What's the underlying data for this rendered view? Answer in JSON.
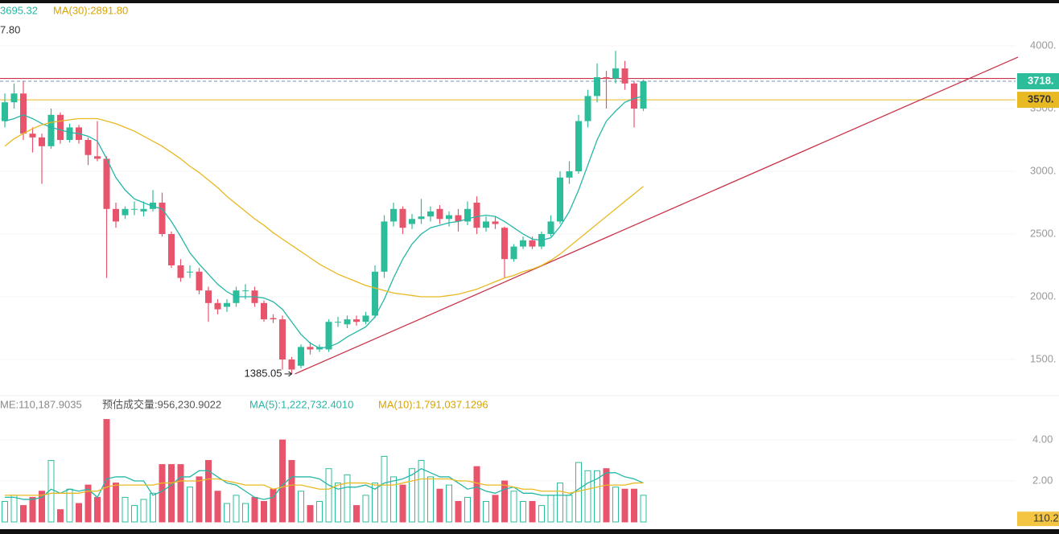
{
  "chart_data": {
    "type": "candlestick",
    "header": {
      "ma_short": "3695.32",
      "ma30": "MA(30):2891.80",
      "sub": "7.80"
    },
    "volume_header": {
      "volume": "ME:110,187.9035",
      "estimate": "预估成交量:956,230.9022",
      "ma5": "MA(5):1,222,732.4010",
      "ma10": "MA(10):1,791,037.1296"
    },
    "colors": {
      "up": "#2ebd9b",
      "down": "#e8546b",
      "ma_short": "#25b7a6",
      "ma_long": "#e8b923",
      "trend": "#c8344a"
    },
    "open": [
      3400,
      3550,
      3620,
      3300,
      3270,
      3200,
      3450,
      3250,
      3350,
      3250,
      3120,
      3100,
      2700,
      2650,
      2700,
      2680,
      2700,
      2750,
      2500,
      2250,
      2200,
      2200,
      2050,
      1950,
      1920,
      1950,
      2050,
      2050,
      1950,
      1830,
      1820,
      1500,
      1450,
      1600,
      1580,
      1580,
      1800,
      1780,
      1820,
      1800,
      1850,
      2200,
      2600,
      2700,
      2580,
      2620,
      2640,
      2700,
      2620,
      2650,
      2600,
      2750,
      2550,
      2600,
      2550,
      2300,
      2400,
      2450,
      2400,
      2500,
      2600,
      2950,
      3000,
      3400,
      3600,
      3750,
      3740,
      3820,
      3700,
      3500
    ],
    "high": [
      3620,
      3700,
      3720,
      3350,
      3300,
      3500,
      3470,
      3380,
      3370,
      3270,
      3400,
      3120,
      2750,
      2720,
      2760,
      2760,
      2850,
      2830,
      2520,
      2300,
      2250,
      2230,
      2080,
      1980,
      1980,
      2080,
      2100,
      2080,
      1970,
      1860,
      1850,
      1520,
      1620,
      1640,
      1620,
      1820,
      1840,
      1850,
      1850,
      1880,
      2250,
      2650,
      2750,
      2720,
      2660,
      2780,
      2720,
      2730,
      2680,
      2700,
      2760,
      2800,
      2640,
      2640,
      2560,
      2420,
      2480,
      2480,
      2520,
      2650,
      3000,
      3080,
      3450,
      3650,
      3860,
      3800,
      3960,
      3880,
      3720,
      3730
    ],
    "low": [
      3350,
      3500,
      3250,
      3150,
      2900,
      3180,
      3220,
      3230,
      3220,
      3050,
      3080,
      2150,
      2550,
      2620,
      2650,
      2640,
      2680,
      2480,
      2230,
      2120,
      2150,
      2020,
      1800,
      1860,
      1880,
      1920,
      1980,
      1920,
      1800,
      1790,
      1420,
      1385.05,
      1430,
      1540,
      1560,
      1560,
      1760,
      1750,
      1770,
      1780,
      1830,
      2150,
      2560,
      2500,
      2540,
      2580,
      2600,
      2580,
      2560,
      2520,
      2570,
      2500,
      2520,
      2540,
      2150,
      2280,
      2380,
      2380,
      2380,
      2480,
      2580,
      2900,
      2980,
      3350,
      3550,
      3500,
      3700,
      3650,
      3350,
      3480
    ],
    "close": [
      3550,
      3620,
      3300,
      3270,
      3200,
      3450,
      3250,
      3350,
      3250,
      3130,
      3100,
      2700,
      2600,
      2700,
      2700,
      2700,
      2750,
      2500,
      2250,
      2150,
      2200,
      2050,
      1950,
      1900,
      1950,
      2050,
      2050,
      1950,
      1820,
      1820,
      1500,
      1420,
      1600,
      1580,
      1600,
      1800,
      1800,
      1820,
      1800,
      1850,
      2200,
      2600,
      2700,
      2550,
      2620,
      2640,
      2680,
      2620,
      2650,
      2600,
      2700,
      2550,
      2600,
      2580,
      2300,
      2400,
      2450,
      2400,
      2500,
      2600,
      2950,
      3000,
      3400,
      3600,
      3750,
      3740,
      3820,
      3700,
      3500,
      3718
    ],
    "ma_short": [
      3400,
      3420,
      3450,
      3420,
      3380,
      3350,
      3330,
      3310,
      3300,
      3280,
      3240,
      3100,
      2950,
      2850,
      2780,
      2750,
      2720,
      2700,
      2600,
      2480,
      2350,
      2260,
      2180,
      2100,
      2040,
      2000,
      2000,
      2000,
      1990,
      1960,
      1900,
      1800,
      1700,
      1630,
      1590,
      1600,
      1630,
      1680,
      1720,
      1760,
      1840,
      1980,
      2150,
      2300,
      2420,
      2500,
      2550,
      2570,
      2590,
      2600,
      2620,
      2640,
      2650,
      2640,
      2600,
      2550,
      2500,
      2460,
      2450,
      2470,
      2560,
      2680,
      2850,
      3050,
      3250,
      3400,
      3480,
      3550,
      3580,
      3600
    ],
    "ma_long": [
      3200,
      3260,
      3300,
      3340,
      3370,
      3390,
      3400,
      3410,
      3420,
      3420,
      3420,
      3400,
      3380,
      3350,
      3320,
      3280,
      3240,
      3200,
      3150,
      3100,
      3040,
      2990,
      2930,
      2870,
      2800,
      2740,
      2680,
      2620,
      2570,
      2510,
      2460,
      2410,
      2360,
      2310,
      2260,
      2220,
      2180,
      2150,
      2120,
      2090,
      2070,
      2050,
      2030,
      2020,
      2010,
      2000,
      2000,
      2000,
      2010,
      2020,
      2040,
      2060,
      2090,
      2120,
      2150,
      2170,
      2200,
      2220,
      2250,
      2290,
      2340,
      2400,
      2460,
      2520,
      2580,
      2640,
      2700,
      2760,
      2820,
      2880
    ],
    "low_annotation": {
      "value": 1385.05,
      "label": "1385.05"
    },
    "resistance": 3740,
    "price_lines": [
      {
        "value": 3718,
        "label": "3718.",
        "color": "#2ebd9b"
      },
      {
        "value": 3570,
        "label": "3570.",
        "color": "#e8b923"
      }
    ],
    "trendline": {
      "start": 1385.05,
      "end": 3910
    },
    "ylim": [
      1200,
      4360
    ],
    "yticks": [
      {
        "value": 4000,
        "label": "4000."
      },
      {
        "value": 3500,
        "label": "3500."
      },
      {
        "value": 3000,
        "label": "3000."
      },
      {
        "value": 2500,
        "label": "2500."
      },
      {
        "value": 2000,
        "label": "2000."
      },
      {
        "value": 1500,
        "label": "1500."
      }
    ],
    "volume": [
      1.0,
      1.3,
      0.8,
      1.2,
      1.5,
      3.0,
      0.6,
      1.6,
      0.9,
      1.8,
      1.2,
      5.0,
      1.9,
      1.2,
      0.8,
      1.1,
      1.4,
      2.8,
      2.8,
      2.8,
      1.7,
      2.2,
      3.0,
      1.5,
      0.9,
      1.3,
      0.9,
      1.2,
      1.0,
      1.6,
      4.0,
      3.0,
      1.5,
      0.8,
      1.0,
      2.6,
      1.9,
      2.3,
      0.8,
      1.3,
      1.9,
      3.2,
      2.2,
      1.8,
      2.6,
      3.0,
      2.2,
      1.6,
      1.8,
      1.0,
      1.2,
      2.7,
      1.0,
      1.3,
      2.0,
      1.5,
      1.0,
      1.0,
      0.8,
      1.3,
      1.9,
      1.3,
      2.9,
      2.5,
      2.5,
      2.6,
      1.7,
      1.6,
      1.6,
      1.3
    ],
    "volume_ma5": [
      1.2,
      1.2,
      1.1,
      1.1,
      1.2,
      1.6,
      1.4,
      1.6,
      1.5,
      1.6,
      1.2,
      2.1,
      2.2,
      2.2,
      2.0,
      2.0,
      1.3,
      1.5,
      1.8,
      2.2,
      2.2,
      2.5,
      2.5,
      2.2,
      1.9,
      1.8,
      1.5,
      1.2,
      1.1,
      1.2,
      1.8,
      2.2,
      2.2,
      2.2,
      2.1,
      1.8,
      1.6,
      1.7,
      1.7,
      1.8,
      1.6,
      1.9,
      2.0,
      2.1,
      2.3,
      2.6,
      2.4,
      2.2,
      2.2,
      1.9,
      1.6,
      1.7,
      1.5,
      1.4,
      1.6,
      1.7,
      1.4,
      1.4,
      1.3,
      1.3,
      1.3,
      1.3,
      1.6,
      1.9,
      2.1,
      2.4,
      2.4,
      2.2,
      2.1,
      1.9
    ],
    "volume_ma10": [
      1.3,
      1.3,
      1.3,
      1.3,
      1.3,
      1.4,
      1.4,
      1.4,
      1.4,
      1.5,
      1.5,
      1.7,
      1.8,
      1.8,
      1.8,
      1.8,
      1.8,
      1.9,
      1.9,
      2.0,
      2.0,
      2.0,
      2.1,
      2.1,
      2.0,
      1.9,
      1.8,
      1.8,
      1.8,
      1.6,
      1.7,
      1.8,
      1.8,
      1.7,
      1.6,
      1.6,
      1.8,
      1.9,
      1.9,
      1.9,
      1.8,
      1.8,
      1.8,
      1.9,
      2.0,
      2.1,
      2.1,
      2.1,
      2.1,
      2.0,
      2.0,
      1.9,
      1.8,
      1.8,
      1.8,
      1.7,
      1.6,
      1.6,
      1.5,
      1.5,
      1.5,
      1.4,
      1.5,
      1.6,
      1.7,
      1.8,
      1.8,
      1.8,
      1.9,
      1.9
    ],
    "vlim": [
      0,
      5.1
    ],
    "vticks": [
      {
        "value": 4,
        "label": "4.00"
      },
      {
        "value": 2,
        "label": "2.00"
      }
    ],
    "volume_tag": {
      "value": 0.11,
      "label": "110.2"
    }
  }
}
